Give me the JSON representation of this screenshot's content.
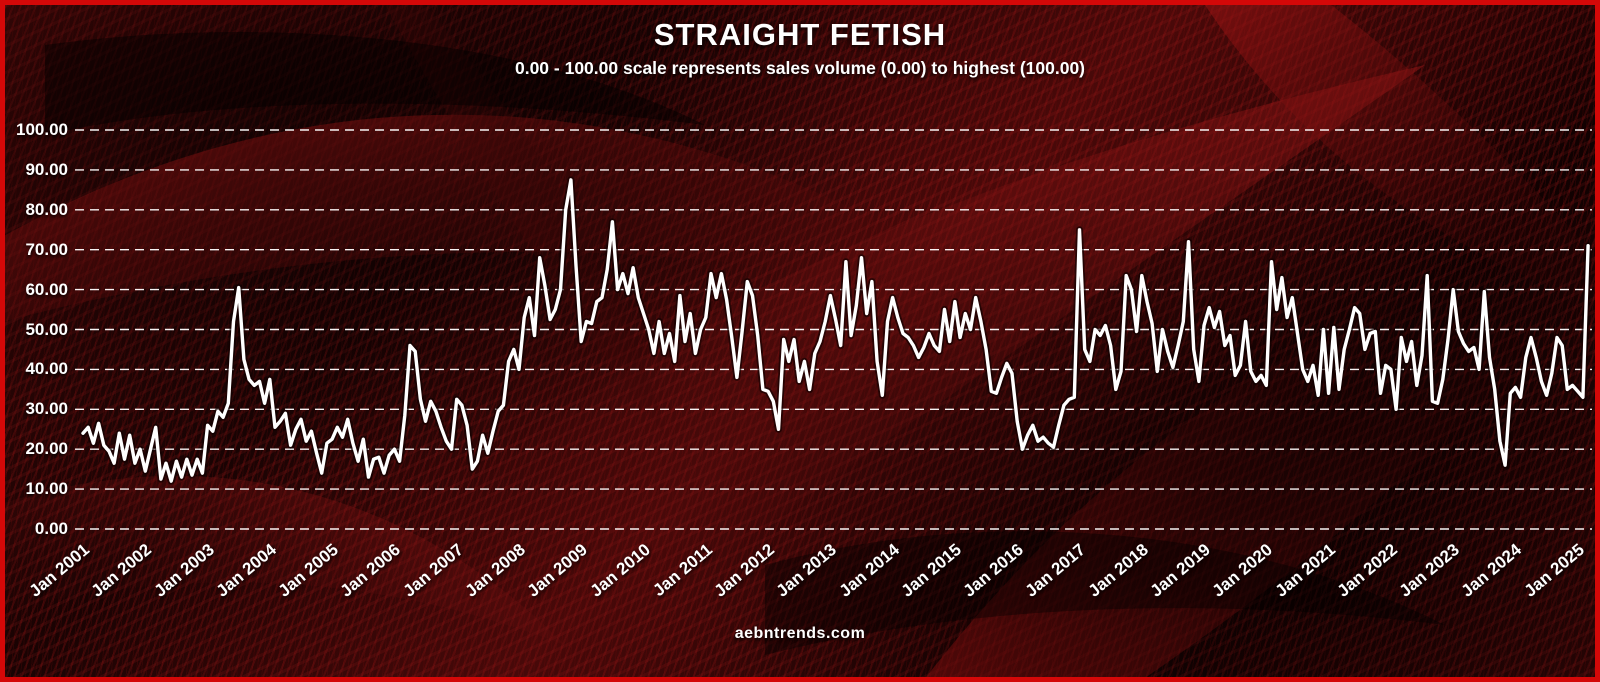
{
  "title": "STRAIGHT FETISH",
  "subtitle": "0.00 - 100.00 scale represents sales volume (0.00) to highest (100.00)",
  "footer": "aebntrends.com",
  "colors": {
    "frame_border": "#d40808",
    "line": "#ffffff",
    "grid": "#ffffff",
    "text": "#ffffff",
    "background_base": "#190303",
    "background_accent": "#8c1010"
  },
  "chart_data": {
    "type": "line",
    "title": "STRAIGHT FETISH",
    "subtitle": "0.00 - 100.00 scale represents sales volume (0.00) to highest (100.00)",
    "series_name": "Straight Fetish sales volume index",
    "xlabel": "",
    "ylabel": "",
    "x_start": "Jan 2001",
    "x_end": "Mar 2025",
    "frequency": "monthly",
    "ylim": [
      0,
      100
    ],
    "grid": "horizontal dashed white lines",
    "legend": "none",
    "y_ticks": [
      0,
      10,
      20,
      30,
      40,
      50,
      60,
      70,
      80,
      90,
      100
    ],
    "y_tick_labels": [
      "0.00",
      "10.00",
      "20.00",
      "30.00",
      "40.00",
      "50.00",
      "60.00",
      "70.00",
      "80.00",
      "90.00",
      "100.00"
    ],
    "x_tick_labels": [
      "Jan 2001",
      "Jan 2002",
      "Jan 2003",
      "Jan 2004",
      "Jan 2005",
      "Jan 2006",
      "Jan 2007",
      "Jan 2008",
      "Jan 2009",
      "Jan 2010",
      "Jan 2011",
      "Jan 2012",
      "Jan 2013",
      "Jan 2014",
      "Jan 2015",
      "Jan 2016",
      "Jan 2017",
      "Jan 2018",
      "Jan 2019",
      "Jan 2020",
      "Jan 2021",
      "Jan 2022",
      "Jan 2023",
      "Jan 2024",
      "Jan 2025"
    ],
    "values": [
      24,
      25.5,
      21.5,
      26.5,
      21,
      19.5,
      16.5,
      24,
      17.5,
      23.5,
      16.5,
      20,
      14.5,
      20,
      25.5,
      12.5,
      16.5,
      12,
      17,
      13,
      17.5,
      13.5,
      17.5,
      14,
      26,
      24.5,
      29.5,
      28,
      31.5,
      52,
      60.5,
      42.5,
      37.5,
      36,
      37,
      31.5,
      37.5,
      25.5,
      27,
      29,
      21,
      25,
      27.5,
      22,
      24.5,
      19,
      14,
      21.5,
      22.5,
      25.5,
      23,
      27.5,
      21.5,
      17,
      22.5,
      13,
      17.5,
      18,
      14,
      18.5,
      20,
      17,
      28.5,
      46,
      44.5,
      32.5,
      27,
      32,
      29.5,
      25.5,
      22,
      20,
      32.5,
      31,
      26,
      15,
      17,
      23.5,
      19,
      24.5,
      29.5,
      31,
      42,
      45,
      40,
      53,
      58,
      48.5,
      68,
      61,
      52.5,
      55,
      60,
      80,
      87.5,
      66,
      47,
      52,
      51.5,
      57,
      58,
      65,
      77,
      60,
      64,
      59,
      65.5,
      58,
      54,
      50,
      44,
      52,
      44,
      49,
      42,
      58.5,
      47,
      54,
      44,
      50,
      53,
      64,
      58,
      64,
      57.5,
      48,
      38,
      49.5,
      62,
      58.5,
      48.5,
      35,
      34.5,
      32,
      25,
      47.5,
      42,
      47.5,
      37,
      42,
      35,
      44,
      47,
      52,
      58.5,
      52.5,
      46,
      67,
      48.5,
      56,
      68,
      54,
      62,
      42,
      33.5,
      52,
      58,
      53,
      49,
      48,
      46,
      43,
      45.5,
      49,
      46,
      44.5,
      55,
      47,
      57,
      48,
      54,
      50,
      58,
      52,
      45,
      34.5,
      34,
      38,
      41.5,
      39,
      27,
      20,
      23.5,
      26,
      22,
      23,
      21.5,
      20.5,
      26,
      31,
      32.5,
      33,
      75,
      45,
      42,
      50,
      48.5,
      51,
      46,
      35,
      39.5,
      63.5,
      60,
      49.5,
      63.5,
      57,
      51.5,
      39.5,
      50,
      44.5,
      40.5,
      46,
      52,
      72,
      45,
      37,
      51,
      55.5,
      50.5,
      54.5,
      46,
      48.5,
      38.5,
      41,
      52,
      39.5,
      37,
      38.5,
      36,
      67,
      55,
      63,
      53,
      58,
      49,
      40,
      37,
      41,
      33.5,
      50,
      34,
      50.5,
      35,
      45,
      50,
      55.5,
      54,
      45,
      49,
      49.5,
      34,
      41,
      40,
      30,
      48,
      42,
      47,
      36,
      43.5,
      63.5,
      32,
      31.5,
      37.5,
      47.5,
      60,
      49.5,
      46.5,
      44.5,
      45.5,
      40,
      59.5,
      43,
      35,
      22,
      16,
      34,
      35.5,
      33,
      43,
      48,
      43,
      37,
      33.5,
      39,
      48,
      46,
      35,
      36,
      34.5,
      33,
      71
    ]
  }
}
